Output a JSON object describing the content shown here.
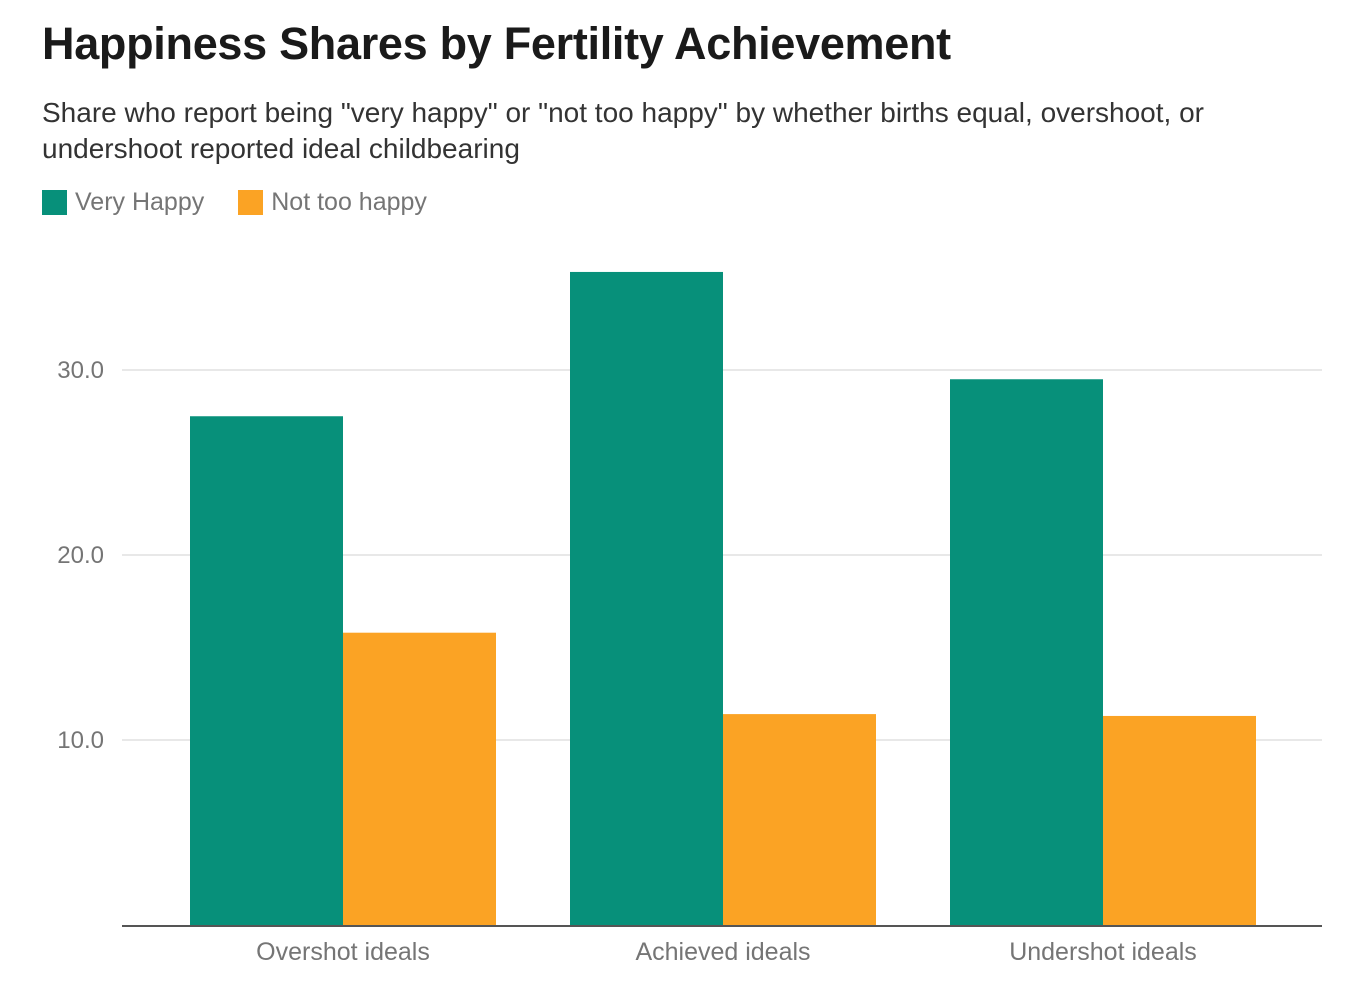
{
  "chart_data": {
    "type": "bar",
    "title": "Happiness Shares by Fertility Achievement",
    "subtitle": "Share who report being \"very happy\" or \"not too happy\" by whether births equal, overshoot, or undershoot reported ideal childbearing",
    "categories": [
      "Overshot ideals",
      "Achieved ideals",
      "Undershot ideals"
    ],
    "series": [
      {
        "name": "Very Happy",
        "color": "#07907a",
        "values": [
          27.5,
          35.3,
          29.5
        ]
      },
      {
        "name": "Not too happy",
        "color": "#fba324",
        "values": [
          15.8,
          11.4,
          11.3
        ]
      }
    ],
    "yticks": [
      "10.0",
      "20.0",
      "30.0"
    ],
    "ytick_values": [
      10,
      20,
      30
    ],
    "ylim": [
      0,
      35.3
    ],
    "grid": true,
    "legend_position": "top-left",
    "xlabel": "",
    "ylabel": ""
  },
  "colors": {
    "gridline": "#e0e0e0",
    "baseline": "#555555"
  }
}
